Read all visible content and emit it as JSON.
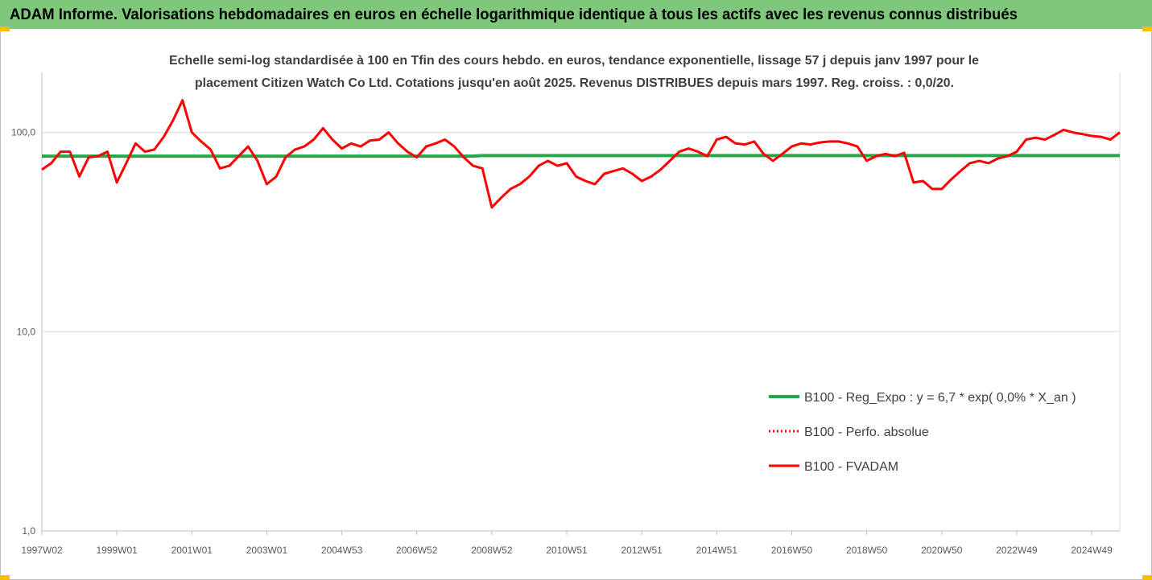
{
  "chart_data": {
    "type": "line",
    "title": "ADAM Informe. Valorisations hebdomadaires en euros en échelle logarithmique identique à tous les actifs avec les revenus connus distribués",
    "subtitle": [
      "Echelle semi-log standardisée à 100 en Tfin des cours hebdo. en euros, tendance exponentielle, lissage 57 j depuis janv 1997 pour le",
      "placement Citizen Watch Co Ltd. Cotations jusqu'en août 2025. Revenus DISTRIBUES depuis mars 1997. Reg. croiss. : 0,0/20."
    ],
    "y_scale": "log",
    "ylim": [
      1,
      200
    ],
    "yticks": [
      {
        "value": 1,
        "label": "1,0"
      },
      {
        "value": 10,
        "label": "10,0"
      },
      {
        "value": 100,
        "label": "100,0"
      }
    ],
    "grid": true,
    "legend": "right",
    "categories": [
      "1997W02",
      null,
      null,
      null,
      null,
      null,
      null,
      null,
      "1999W01",
      null,
      null,
      null,
      null,
      null,
      null,
      null,
      "2001W01",
      null,
      null,
      null,
      null,
      null,
      null,
      null,
      "2003W01",
      null,
      null,
      null,
      null,
      null,
      null,
      null,
      "2004W53",
      null,
      null,
      null,
      null,
      null,
      null,
      null,
      "2006W52",
      null,
      null,
      null,
      null,
      null,
      null,
      null,
      "2008W52",
      null,
      null,
      null,
      null,
      null,
      null,
      null,
      "2010W51",
      null,
      null,
      null,
      null,
      null,
      null,
      null,
      "2012W51",
      null,
      null,
      null,
      null,
      null,
      null,
      null,
      "2014W51",
      null,
      null,
      null,
      null,
      null,
      null,
      null,
      "2016W50",
      null,
      null,
      null,
      null,
      null,
      null,
      null,
      "2018W50",
      null,
      null,
      null,
      null,
      null,
      null,
      null,
      "2020W50",
      null,
      null,
      null,
      null,
      null,
      null,
      null,
      "2022W49",
      null,
      null,
      null,
      null,
      null,
      null,
      null,
      "2024W49",
      null,
      null,
      null
    ],
    "series": [
      {
        "name": "B100 - Reg_Expo : y = 6,7 * exp( 0,0% *  X_an )",
        "color": "#22a94a",
        "style": "solid",
        "values": [
          76,
          76,
          76,
          76,
          76,
          76,
          76,
          76,
          76,
          76,
          76,
          76,
          76,
          76,
          76,
          76,
          76,
          76,
          76,
          76,
          76,
          76,
          76,
          76,
          76,
          76,
          76,
          76,
          76,
          76,
          76,
          76,
          76,
          76,
          76,
          76,
          76,
          76,
          76,
          76,
          76,
          76,
          76,
          76,
          76,
          76,
          76,
          76.5,
          76.5,
          76.5,
          76.5,
          76.5,
          76.5,
          76.5,
          76.5,
          76.5,
          76.5,
          76.5,
          76.5,
          76.5,
          76.5,
          76.5,
          76.5,
          76.5,
          76.5,
          76.5,
          76.5,
          76.5,
          76.5,
          76.5,
          76.5,
          76.5,
          76.5,
          76.5,
          76.5,
          76.5,
          76.5,
          76.5,
          76.5,
          76.5,
          76.5,
          76.5,
          76.5,
          76.5,
          76.5,
          76.5,
          76.5,
          76.5,
          76.5,
          76.5,
          76.5,
          76.5,
          76.5,
          76.5,
          76.5,
          76.5,
          76.5,
          76.5,
          76.5,
          76.5,
          76.5,
          76.5,
          76.5,
          76.5,
          76.5,
          76.5,
          76.5,
          76.5,
          76.5,
          76.5,
          76.5,
          76.5,
          76.5,
          76.5,
          76.5,
          76.5
        ]
      },
      {
        "name": "B100 - Perfo. absolue",
        "color": "#ff0000",
        "style": "dotted",
        "values": [
          null,
          null,
          null,
          null,
          null,
          null,
          null,
          null,
          null,
          null,
          null,
          null,
          null,
          null,
          null,
          null,
          null,
          null,
          null,
          null,
          null,
          null,
          null,
          null,
          null,
          null,
          null,
          null,
          null,
          null,
          null,
          null,
          null,
          null,
          null,
          null,
          null,
          null,
          null,
          null,
          null,
          null,
          null,
          null,
          null,
          null,
          null,
          null,
          null,
          null,
          null,
          null,
          null,
          null,
          null,
          null,
          null,
          null,
          null,
          null,
          null,
          null,
          null,
          null,
          null,
          null,
          null,
          null,
          null,
          null,
          null,
          null,
          null,
          null,
          null,
          null,
          null,
          null,
          null,
          null,
          null,
          null,
          null,
          null,
          null,
          null,
          null,
          null,
          null,
          null,
          null,
          null,
          null,
          null,
          null,
          null,
          null,
          null,
          null,
          null,
          null,
          null,
          null,
          null,
          null,
          null,
          null,
          null,
          null,
          null,
          null,
          null,
          null,
          null,
          null,
          null
        ]
      },
      {
        "name": "B100 - FVADAM",
        "color": "#ff0000",
        "style": "solid",
        "values": [
          65,
          70,
          80,
          80,
          60,
          75,
          76,
          80,
          56,
          70,
          88,
          80,
          82,
          95,
          115,
          145,
          100,
          90,
          82,
          66,
          68,
          76,
          85,
          72,
          55,
          60,
          75,
          82,
          85,
          92,
          105,
          92,
          83,
          88,
          85,
          91,
          92,
          100,
          88,
          80,
          75,
          85,
          88,
          92,
          85,
          75,
          68,
          66,
          42,
          47,
          52,
          55,
          60,
          68,
          72,
          68,
          70,
          60,
          57,
          55,
          62,
          64,
          66,
          62,
          57,
          60,
          65,
          72,
          80,
          83,
          80,
          76,
          92,
          95,
          88,
          87,
          90,
          78,
          72,
          78,
          85,
          88,
          87,
          89,
          90,
          90,
          88,
          85,
          72,
          76,
          78,
          76,
          79,
          56,
          57,
          52,
          52,
          58,
          64,
          70,
          72,
          70,
          74,
          76,
          80,
          92,
          94,
          92,
          97,
          103,
          100,
          98,
          96,
          95,
          92,
          100
        ]
      }
    ]
  }
}
